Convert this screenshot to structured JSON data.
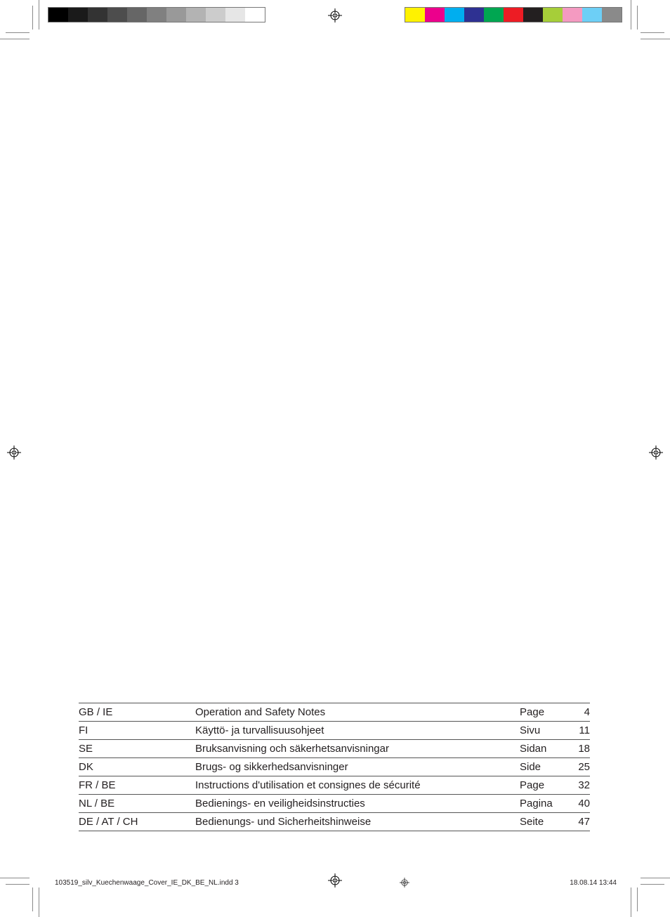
{
  "crop_marks": {
    "color": "#8a8a8a"
  },
  "colorbars": {
    "grayscale": [
      "#000000",
      "#1a1a1a",
      "#333333",
      "#4d4d4d",
      "#666666",
      "#808080",
      "#999999",
      "#b3b3b3",
      "#cccccc",
      "#e6e6e6",
      "#ffffff"
    ],
    "process": [
      "#fff200",
      "#ec008c",
      "#00aeef",
      "#2e3192",
      "#00a651",
      "#ed1c24",
      "#231f20",
      "#a6ce39",
      "#f49ac1",
      "#6dcff6",
      "#8a8a8a"
    ]
  },
  "toc": {
    "rows": [
      {
        "lang": "GB / IE",
        "desc": "Operation and Safety Notes",
        "page_label": "Page",
        "page_num": "4"
      },
      {
        "lang": "FI",
        "desc": "Käyttö- ja turvallisuusohjeet",
        "page_label": "Sivu",
        "page_num": "11"
      },
      {
        "lang": "SE",
        "desc": "Bruksanvisning och säkerhetsanvisningar",
        "page_label": "Sidan",
        "page_num": "18"
      },
      {
        "lang": "DK",
        "desc": "Brugs- og sikkerhedsanvisninger",
        "page_label": "Side",
        "page_num": "25"
      },
      {
        "lang": "FR / BE",
        "desc": "Instructions d'utilisation et consignes de sécurité",
        "page_label": "Page",
        "page_num": "32"
      },
      {
        "lang": "NL / BE",
        "desc": "Bedienings- en veiligheidsinstructies",
        "page_label": "Pagina",
        "page_num": "40"
      },
      {
        "lang": "DE / AT / CH",
        "desc": "Bedienungs- und Sicherheitshinweise",
        "page_label": "Seite",
        "page_num": "47"
      }
    ],
    "font_size_pt": 11,
    "text_color": "#231f20",
    "rule_color": "#555555"
  },
  "footer": {
    "filename": "103519_silv_Kuechenwaage_Cover_IE_DK_BE_NL.indd   3",
    "date": "18.08.14   13:44"
  }
}
